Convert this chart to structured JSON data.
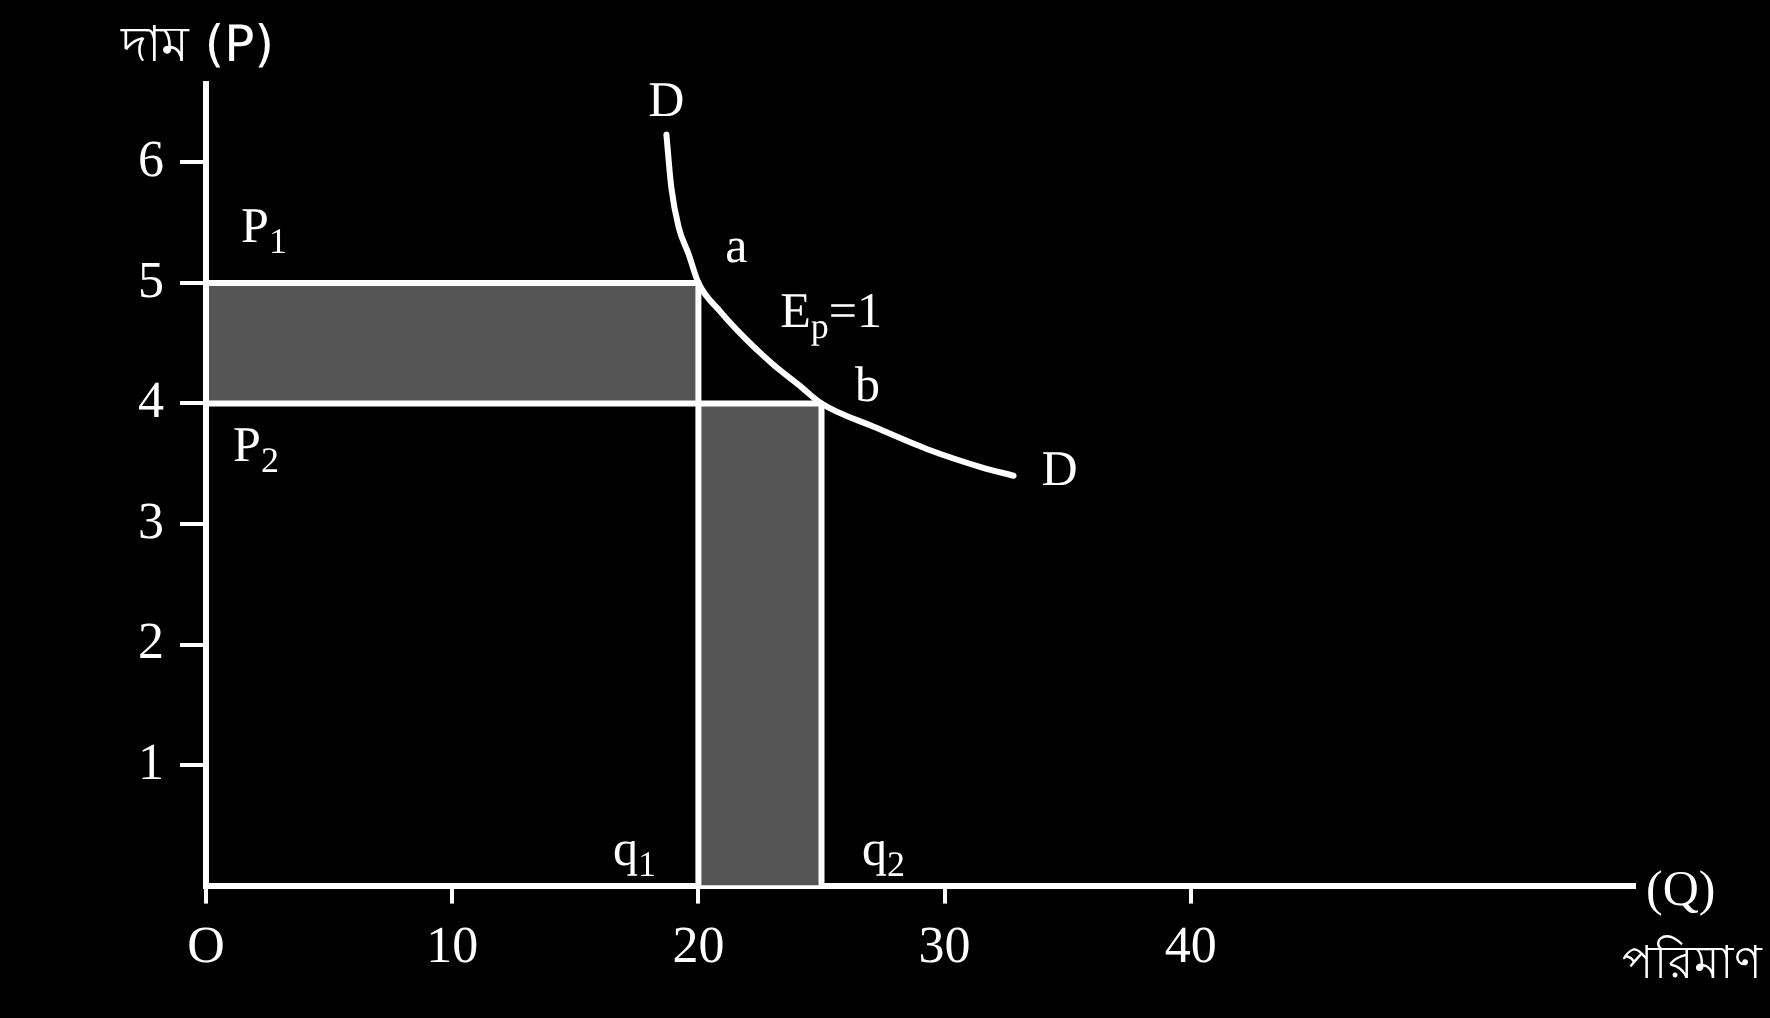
{
  "chart_data": {
    "type": "line",
    "ylabel": "দাম (P)",
    "xlabel": "(Q)\nপরিমাণ",
    "xlim": [
      0,
      58
    ],
    "ylim": [
      0,
      6.65
    ],
    "xticks": [
      {
        "value": 0,
        "label": "O"
      },
      10,
      20,
      30,
      40
    ],
    "yticks": [
      1,
      2,
      3,
      4,
      5,
      6
    ],
    "series": [
      {
        "color": "#ffffff",
        "x": [
          18.7,
          18.9,
          19.2,
          19.6,
          20,
          20.9,
          21.9,
          23,
          24.1,
          25,
          27.2,
          29.3,
          31.5,
          32.8
        ],
        "values": [
          6.23,
          5.79,
          5.46,
          5.24,
          5,
          4.76,
          4.54,
          4.33,
          4.15,
          4,
          3.8,
          3.62,
          3.47,
          3.4
        ]
      },
      {
        "color": "#ffffff",
        "x": [
          0,
          20
        ],
        "values": [
          5,
          5
        ],
        "lower": [
          4,
          4
        ],
        "upper": [
          5,
          5
        ]
      },
      {
        "color": "#ffffff",
        "x": [
          20,
          20
        ],
        "values": [
          5,
          0
        ]
      },
      {
        "color": "#ffffff",
        "x": [
          0,
          25,
          25
        ],
        "values": [
          4,
          4,
          0
        ]
      },
      {
        "type": "area",
        "color": "#555555",
        "x": [
          20,
          25
        ],
        "values": [
          4,
          4
        ]
      }
    ],
    "annotations": [
      {
        "text": "D",
        "x": 18.7,
        "y": 6.23
      },
      {
        "text": "D",
        "x": 32.8,
        "y": 3.4
      },
      {
        "text": "a",
        "x": 20,
        "y": 5
      },
      {
        "text": "E$_{p}$=1",
        "x": 23,
        "y": 4.33
      },
      {
        "text": "b",
        "x": 25,
        "y": 4
      },
      {
        "text": "P$_{1}$",
        "x": 0,
        "y": 5
      },
      {
        "text": "P$_{2}$",
        "x": 0,
        "y": 4
      },
      {
        "text": "q$_{1}$",
        "x": 20,
        "y": 0
      },
      {
        "text": "q$_{2}$",
        "x": 25,
        "y": 0
      }
    ]
  }
}
